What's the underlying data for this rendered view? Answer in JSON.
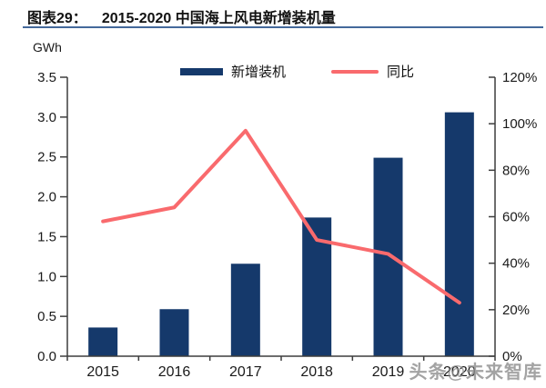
{
  "header": {
    "label": "图表29：",
    "title": "2015-2020 中国海上风电新增装机量"
  },
  "watermark": {
    "text": "头条@未来智库"
  },
  "chart_data": {
    "type": "bar+line",
    "title": "2015-2020 中国海上风电新增装机量",
    "categories": [
      "2015",
      "2016",
      "2017",
      "2018",
      "2019",
      "2020"
    ],
    "series": [
      {
        "name": "新增装机",
        "type": "bar",
        "axis": "left",
        "color": "#15396B",
        "values": [
          0.36,
          0.59,
          1.16,
          1.74,
          2.49,
          3.06
        ]
      },
      {
        "name": "同比",
        "type": "line",
        "axis": "right",
        "color": "#F96A6D",
        "values": [
          58,
          64,
          97,
          50,
          44,
          23
        ]
      }
    ],
    "left_axis": {
      "unit": "GWh",
      "min": 0,
      "max": 3.5,
      "step": 0.5,
      "tick_labels": [
        "0.0",
        "0.5",
        "1.0",
        "1.5",
        "2.0",
        "2.5",
        "3.0",
        "3.5"
      ]
    },
    "right_axis": {
      "min": 0,
      "max": 120,
      "step": 20,
      "suffix": "%",
      "tick_labels": [
        "0%",
        "20%",
        "40%",
        "60%",
        "80%",
        "100%",
        "120%"
      ]
    },
    "legend_position": "top",
    "grid": false,
    "axis_color": "#3d3d3d",
    "tick_label_color": "#1a1a1a"
  }
}
